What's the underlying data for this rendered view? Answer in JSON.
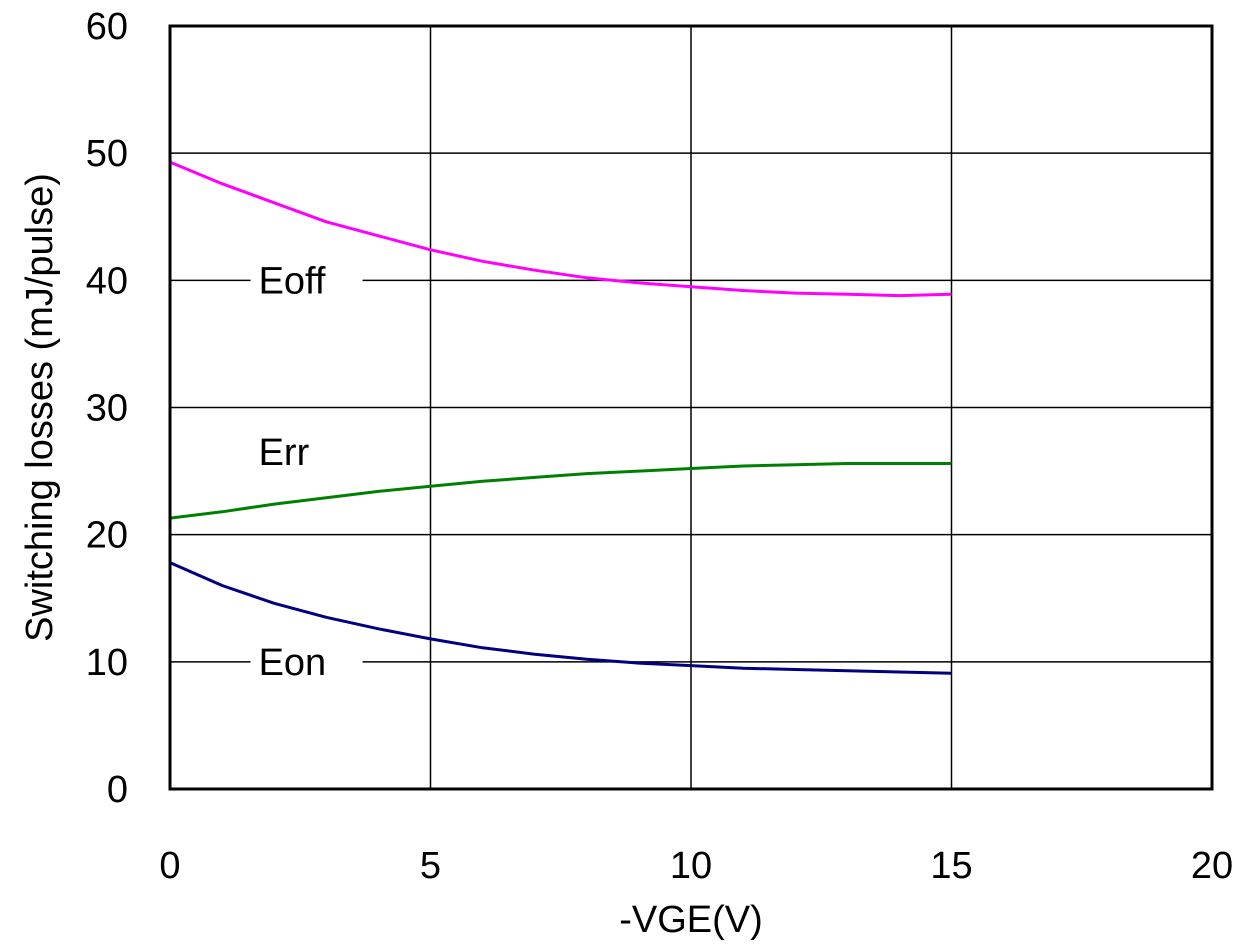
{
  "chart_data": {
    "type": "line",
    "xlabel": "-VGE(V)",
    "ylabel": "Switching losses (mJ/pulse)",
    "xlim": [
      0,
      20
    ],
    "ylim": [
      0,
      60
    ],
    "xticks": [
      0,
      5,
      10,
      15,
      20
    ],
    "yticks": [
      0,
      10,
      20,
      30,
      40,
      50,
      60
    ],
    "x_tick_labels": [
      "0",
      "5",
      "10",
      "15",
      "20"
    ],
    "y_tick_labels": [
      "0",
      "10",
      "20",
      "30",
      "40",
      "50",
      "60"
    ],
    "grid": true,
    "series": [
      {
        "name": "Eoff",
        "color": "#ff00ff",
        "label_pos": [
          1.7,
          40
        ],
        "x": [
          0,
          1,
          2,
          3,
          4,
          5,
          6,
          7,
          8,
          9,
          10,
          11,
          12,
          13,
          14,
          15
        ],
        "y": [
          49.3,
          47.6,
          46.1,
          44.6,
          43.5,
          42.4,
          41.5,
          40.8,
          40.2,
          39.8,
          39.5,
          39.2,
          39.0,
          38.9,
          38.8,
          38.9
        ]
      },
      {
        "name": "Err",
        "color": "#008000",
        "label_pos": [
          1.7,
          26.5
        ],
        "x": [
          0,
          1,
          2,
          3,
          4,
          5,
          6,
          7,
          8,
          9,
          10,
          11,
          12,
          13,
          14,
          15
        ],
        "y": [
          21.3,
          21.8,
          22.4,
          22.9,
          23.4,
          23.8,
          24.2,
          24.5,
          24.8,
          25.0,
          25.2,
          25.4,
          25.5,
          25.6,
          25.6,
          25.6
        ]
      },
      {
        "name": "Eon",
        "color": "#000080",
        "label_pos": [
          1.7,
          10
        ],
        "x": [
          0,
          1,
          2,
          3,
          4,
          5,
          6,
          7,
          8,
          9,
          10,
          11,
          12,
          13,
          14,
          15
        ],
        "y": [
          17.8,
          16.0,
          14.6,
          13.5,
          12.6,
          11.8,
          11.1,
          10.6,
          10.2,
          9.9,
          9.7,
          9.5,
          9.4,
          9.3,
          9.2,
          9.1
        ]
      }
    ]
  }
}
